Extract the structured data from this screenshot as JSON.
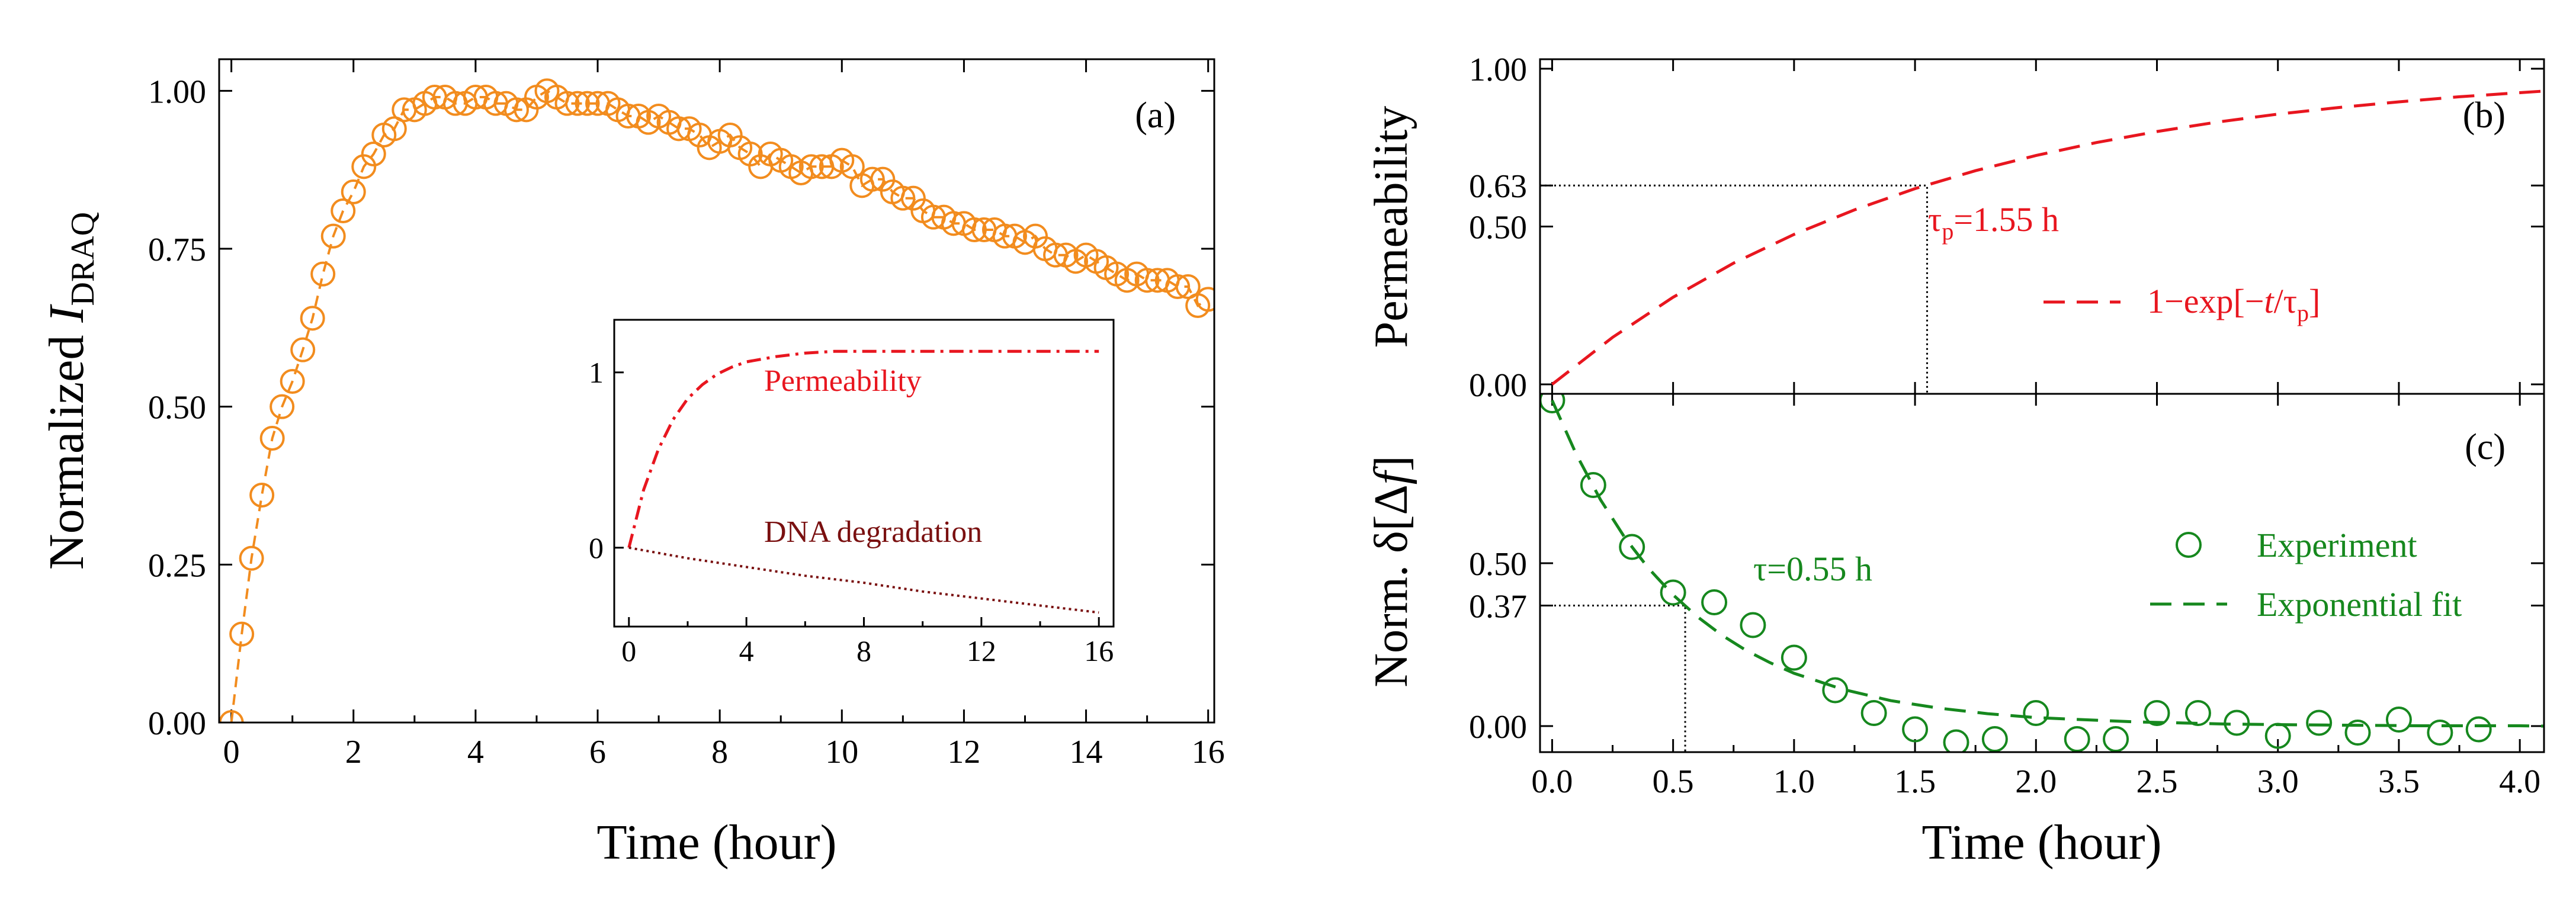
{
  "colors": {
    "orange": "#f28c1e",
    "red": "#e8161f",
    "maroon": "#7a1010",
    "green": "#16881e",
    "black": "#000000"
  },
  "chart_data": [
    {
      "type": "scatter",
      "panel_label": "(a)",
      "xlabel": "Time (hour)",
      "ylabel_prefix": "Normalized ",
      "ylabel_main": "I",
      "ylabel_sub": "DRAQ",
      "xlim": [
        -0.2,
        16.1
      ],
      "ylim": [
        0,
        1.05
      ],
      "x_ticks": [
        0,
        2,
        4,
        6,
        8,
        10,
        12,
        14,
        16
      ],
      "x_tick_labels": [
        "0",
        "2",
        "4",
        "6",
        "8",
        "10",
        "12",
        "14",
        "16"
      ],
      "y_ticks": [
        0,
        0.25,
        0.5,
        0.75,
        1.0
      ],
      "y_tick_labels": [
        "0.00",
        "0.25",
        "0.50",
        "0.75",
        "1.00"
      ],
      "marker": "open-circle",
      "series": [
        {
          "name": "Normalized I_DRAQ",
          "style": "circles with dashed connecting line",
          "x": [
            0.0,
            0.17,
            0.33,
            0.5,
            0.67,
            0.83,
            1.0,
            1.17,
            1.33,
            1.5,
            1.67,
            1.83,
            2.0,
            2.17,
            2.33,
            2.5,
            2.67,
            2.83,
            3.0,
            3.17,
            3.33,
            3.5,
            3.67,
            3.83,
            4.0,
            4.17,
            4.33,
            4.5,
            4.67,
            4.83,
            5.0,
            5.17,
            5.33,
            5.5,
            5.67,
            5.83,
            6.0,
            6.17,
            6.33,
            6.5,
            6.67,
            6.83,
            7.0,
            7.17,
            7.33,
            7.5,
            7.67,
            7.83,
            8.0,
            8.17,
            8.33,
            8.5,
            8.67,
            8.83,
            9.0,
            9.17,
            9.33,
            9.5,
            9.67,
            9.83,
            10.0,
            10.17,
            10.33,
            10.5,
            10.67,
            10.83,
            11.0,
            11.17,
            11.33,
            11.5,
            11.67,
            11.83,
            12.0,
            12.17,
            12.33,
            12.5,
            12.67,
            12.83,
            13.0,
            13.17,
            13.33,
            13.5,
            13.67,
            13.83,
            14.0,
            14.17,
            14.33,
            14.5,
            14.67,
            14.83,
            15.0,
            15.17,
            15.33,
            15.5,
            15.67,
            15.83,
            16.0
          ],
          "values": [
            0.0,
            0.14,
            0.26,
            0.36,
            0.45,
            0.5,
            0.54,
            0.59,
            0.64,
            0.71,
            0.77,
            0.81,
            0.84,
            0.88,
            0.9,
            0.93,
            0.94,
            0.97,
            0.97,
            0.98,
            0.99,
            0.99,
            0.98,
            0.98,
            0.99,
            0.99,
            0.98,
            0.98,
            0.97,
            0.97,
            0.99,
            1.0,
            0.99,
            0.98,
            0.98,
            0.98,
            0.98,
            0.98,
            0.97,
            0.96,
            0.96,
            0.95,
            0.96,
            0.95,
            0.94,
            0.94,
            0.93,
            0.91,
            0.92,
            0.93,
            0.91,
            0.9,
            0.88,
            0.9,
            0.89,
            0.88,
            0.87,
            0.88,
            0.88,
            0.88,
            0.89,
            0.88,
            0.85,
            0.86,
            0.86,
            0.84,
            0.83,
            0.83,
            0.81,
            0.8,
            0.8,
            0.79,
            0.79,
            0.78,
            0.78,
            0.78,
            0.77,
            0.77,
            0.76,
            0.77,
            0.75,
            0.74,
            0.74,
            0.73,
            0.74,
            0.73,
            0.72,
            0.71,
            0.7,
            0.71,
            0.7,
            0.7,
            0.7,
            0.69,
            0.69,
            0.66,
            0.67
          ]
        }
      ],
      "inset": {
        "type": "line",
        "xlim": [
          -0.5,
          16.5
        ],
        "ylim": [
          -0.45,
          1.3
        ],
        "x_ticks": [
          0,
          4,
          8,
          12,
          16
        ],
        "x_tick_labels": [
          "0",
          "4",
          "8",
          "12",
          "16"
        ],
        "y_ticks": [
          0,
          1
        ],
        "y_tick_labels": [
          "0",
          "1"
        ],
        "series": [
          {
            "name": "Permeability",
            "style": "dash-dot",
            "x": [
              0,
              0.5,
              1,
              1.5,
              2,
              2.5,
              3,
              3.5,
              4,
              5,
              6,
              7,
              8,
              10,
              12,
              14,
              16
            ],
            "values": [
              0.0,
              0.33,
              0.56,
              0.73,
              0.85,
              0.93,
              0.99,
              1.03,
              1.06,
              1.09,
              1.11,
              1.12,
              1.12,
              1.12,
              1.12,
              1.12,
              1.12
            ]
          },
          {
            "name": "DNA degradation",
            "style": "dotted",
            "x": [
              0,
              2,
              4,
              6,
              8,
              10,
              12,
              14,
              16
            ],
            "values": [
              0.0,
              -0.06,
              -0.11,
              -0.16,
              -0.2,
              -0.25,
              -0.29,
              -0.33,
              -0.37
            ]
          }
        ],
        "labels": {
          "permeability": "Permeability",
          "dna": "DNA degradation"
        }
      }
    },
    {
      "type": "line",
      "panel_label": "(b)",
      "ylabel": "Permeability",
      "xlim": [
        -0.05,
        4.1
      ],
      "ylim": [
        -0.03,
        1.03
      ],
      "x_ticks": [
        0.0,
        0.5,
        1.0,
        1.5,
        2.0,
        2.5,
        3.0,
        3.5,
        4.0
      ],
      "y_ticks": [
        0.0,
        0.5,
        0.63,
        1.0
      ],
      "y_tick_labels": [
        "0.00",
        "0.50",
        "0.63",
        "1.00"
      ],
      "tau": 1.55,
      "annotation": {
        "main": "τ",
        "sub": "p",
        "rest": "=1.55 h"
      },
      "legend": {
        "prefix": "1−exp[−",
        "var": "t",
        "mid": "/τ",
        "sub": "p",
        "suffix": "]"
      },
      "series": [
        {
          "name": "1−exp[−t/τp]",
          "style": "dashed",
          "x": [
            0.0,
            0.25,
            0.5,
            0.75,
            1.0,
            1.25,
            1.5,
            1.75,
            2.0,
            2.25,
            2.5,
            2.75,
            3.0,
            3.25,
            3.5,
            3.75,
            4.0,
            4.1
          ],
          "values": [
            0.0,
            0.149,
            0.276,
            0.384,
            0.475,
            0.553,
            0.62,
            0.677,
            0.725,
            0.766,
            0.801,
            0.831,
            0.856,
            0.877,
            0.895,
            0.911,
            0.924,
            0.929
          ]
        }
      ]
    },
    {
      "type": "scatter",
      "panel_label": "(c)",
      "xlabel": "Time (hour)",
      "ylabel": "Norm. δ[Δf]",
      "ylabel_parts": {
        "prefix": "Norm. δ[Δ",
        "var": "f",
        "suffix": "]"
      },
      "xlim": [
        -0.05,
        4.1
      ],
      "ylim": [
        -0.08,
        1.02
      ],
      "x_ticks": [
        0.0,
        0.5,
        1.0,
        1.5,
        2.0,
        2.5,
        3.0,
        3.5,
        4.0
      ],
      "x_tick_labels": [
        "0.0",
        "0.5",
        "1.0",
        "1.5",
        "2.0",
        "2.5",
        "3.0",
        "3.5",
        "4.0"
      ],
      "y_ticks": [
        0.0,
        0.37,
        0.5
      ],
      "y_tick_labels": [
        "0.00",
        "0.37",
        "0.50"
      ],
      "tau": 0.55,
      "annotation": "τ=0.55 h",
      "legend": [
        "Experiment",
        "Exponential fit"
      ],
      "series": [
        {
          "name": "Experiment",
          "marker": "open-circle",
          "x": [
            0.0,
            0.17,
            0.33,
            0.5,
            0.67,
            0.83,
            1.0,
            1.17,
            1.33,
            1.5,
            1.67,
            1.83,
            2.0,
            2.17,
            2.33,
            2.5,
            2.67,
            2.83,
            3.0,
            3.17,
            3.33,
            3.5,
            3.67,
            3.83
          ],
          "values": [
            1.0,
            0.74,
            0.55,
            0.41,
            0.38,
            0.31,
            0.21,
            0.11,
            0.04,
            -0.01,
            -0.05,
            -0.04,
            0.04,
            -0.04,
            -0.04,
            0.04,
            0.04,
            0.01,
            -0.03,
            0.01,
            -0.02,
            0.02,
            -0.02,
            -0.01
          ]
        },
        {
          "name": "Exponential fit",
          "style": "dashed",
          "x": [
            0.0,
            0.1,
            0.2,
            0.3,
            0.4,
            0.5,
            0.6,
            0.7,
            0.8,
            0.9,
            1.0,
            1.2,
            1.4,
            1.6,
            1.8,
            2.0,
            2.4,
            2.8,
            3.2,
            3.6,
            4.0,
            4.1
          ],
          "values": [
            1.0,
            0.834,
            0.695,
            0.579,
            0.483,
            0.403,
            0.336,
            0.28,
            0.233,
            0.195,
            0.162,
            0.113,
            0.078,
            0.055,
            0.038,
            0.026,
            0.013,
            0.006,
            0.003,
            0.001,
            0.001,
            0.0
          ]
        }
      ]
    }
  ]
}
